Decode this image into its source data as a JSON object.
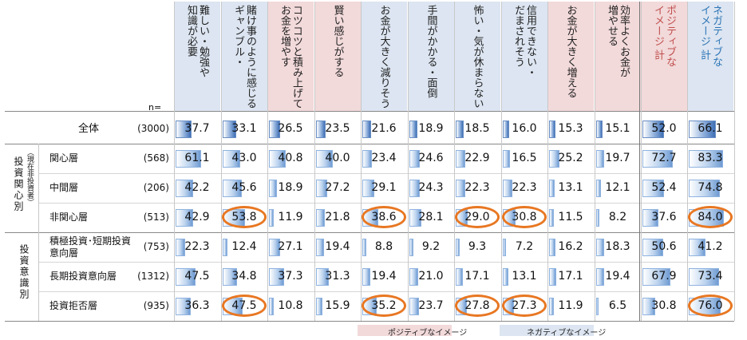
{
  "n_label": "n=",
  "columns": [
    {
      "label": "難しい・勉強や\n知識が必要",
      "group": "negative"
    },
    {
      "label": "賭け事のように感じる\nギャンブル・",
      "group": "negative"
    },
    {
      "label": "コツコツと積み上げて\nお金を増やす",
      "group": "positive"
    },
    {
      "label": "賢い感じがする",
      "group": "positive"
    },
    {
      "label": "お金が大きく減りそう",
      "group": "negative"
    },
    {
      "label": "手間がかかる・面倒",
      "group": "negative"
    },
    {
      "label": "怖い・気が休まらない",
      "group": "negative"
    },
    {
      "label": "信用できない・\nだまされそう",
      "group": "negative"
    },
    {
      "label": "お金が大きく増える",
      "group": "positive"
    },
    {
      "label": "効率よくお金が\n増やせる",
      "group": "positive"
    },
    {
      "label": "ポジティブな\nイメージ 計",
      "group": "positive",
      "summary": true
    },
    {
      "label": "ネガティブな\nイメージ 計",
      "group": "negative",
      "summary": true
    }
  ],
  "groups": [
    {
      "label": "投資関心別",
      "note": "（現在非投資者）"
    },
    {
      "label": "投資意識別",
      "note": ""
    }
  ],
  "rows": [
    {
      "label": "全体",
      "n": "(3000)",
      "values": [
        "37.7",
        "33.1",
        "26.5",
        "23.5",
        "21.6",
        "18.9",
        "18.5",
        "16.0",
        "15.3",
        "15.1",
        "52.0",
        "66.1"
      ]
    },
    {
      "label": "関心層",
      "n": "(568)",
      "values": [
        "61.1",
        "43.0",
        "40.8",
        "40.0",
        "23.4",
        "24.6",
        "22.9",
        "16.5",
        "25.2",
        "19.7",
        "72.7",
        "83.3"
      ]
    },
    {
      "label": "中間層",
      "n": "(206)",
      "values": [
        "42.2",
        "45.6",
        "18.9",
        "27.2",
        "29.1",
        "24.3",
        "22.3",
        "22.3",
        "13.1",
        "12.1",
        "52.4",
        "74.8"
      ]
    },
    {
      "label": "非関心層",
      "n": "(513)",
      "values": [
        "42.9",
        "53.8",
        "11.9",
        "21.8",
        "38.6",
        "28.1",
        "29.0",
        "30.8",
        "11.5",
        "8.2",
        "37.6",
        "84.0"
      ]
    },
    {
      "label": "積極投資･短期投資\n意向層",
      "n": "(753)",
      "values": [
        "22.3",
        "12.4",
        "27.1",
        "19.4",
        "8.8",
        "9.2",
        "9.3",
        "7.2",
        "16.2",
        "18.3",
        "50.6",
        "41.2"
      ]
    },
    {
      "label": "長期投資意向層",
      "n": "(1312)",
      "values": [
        "47.5",
        "34.8",
        "37.3",
        "31.3",
        "19.4",
        "21.0",
        "17.1",
        "13.1",
        "17.1",
        "19.4",
        "67.9",
        "73.4"
      ]
    },
    {
      "label": "投資拒否層",
      "n": "(935)",
      "values": [
        "36.3",
        "47.5",
        "10.8",
        "15.9",
        "35.2",
        "23.7",
        "27.8",
        "27.3",
        "11.9",
        "6.5",
        "30.8",
        "76.0"
      ]
    }
  ],
  "highlights": [
    {
      "row": 3,
      "col": 1
    },
    {
      "row": 3,
      "col": 4
    },
    {
      "row": 3,
      "col": 6
    },
    {
      "row": 3,
      "col": 7
    },
    {
      "row": 3,
      "col": 11
    },
    {
      "row": 6,
      "col": 1
    },
    {
      "row": 6,
      "col": 4
    },
    {
      "row": 6,
      "col": 6
    },
    {
      "row": 6,
      "col": 7
    },
    {
      "row": 6,
      "col": 11
    }
  ],
  "legend": {
    "positive": "ポジティブなイメージ",
    "negative": "ネガティブなイメージ"
  },
  "colors": {
    "positive_bg": "#f2d9da",
    "negative_bg": "#dce5f1",
    "highlight": "#e87722"
  },
  "chart_data": {
    "type": "table",
    "title": "",
    "categories": [
      "難しい・勉強や知識が必要",
      "ギャンブル・賭け事のように感じる",
      "コツコツと積み上げてお金を増やす",
      "賢い感じがする",
      "お金が大きく減りそう",
      "手間がかかる・面倒",
      "怖い・気が休まらない",
      "信用できない・だまされそう",
      "お金が大きく増える",
      "効率よくお金が増やせる",
      "ポジティブなイメージ 計",
      "ネガティブなイメージ 計"
    ],
    "series": [
      {
        "name": "全体",
        "values": [
          37.7,
          33.1,
          26.5,
          23.5,
          21.6,
          18.9,
          18.5,
          16.0,
          15.3,
          15.1,
          52.0,
          66.1
        ]
      },
      {
        "name": "関心層",
        "values": [
          61.1,
          43.0,
          40.8,
          40.0,
          23.4,
          24.6,
          22.9,
          16.5,
          25.2,
          19.7,
          72.7,
          83.3
        ]
      },
      {
        "name": "中間層",
        "values": [
          42.2,
          45.6,
          18.9,
          27.2,
          29.1,
          24.3,
          22.3,
          22.3,
          13.1,
          12.1,
          52.4,
          74.8
        ]
      },
      {
        "name": "非関心層",
        "values": [
          42.9,
          53.8,
          11.9,
          21.8,
          38.6,
          28.1,
          29.0,
          30.8,
          11.5,
          8.2,
          37.6,
          84.0
        ]
      },
      {
        "name": "積極投資･短期投資意向層",
        "values": [
          22.3,
          12.4,
          27.1,
          19.4,
          8.8,
          9.2,
          9.3,
          7.2,
          16.2,
          18.3,
          50.6,
          41.2
        ]
      },
      {
        "name": "長期投資意向層",
        "values": [
          47.5,
          34.8,
          37.3,
          31.3,
          19.4,
          21.0,
          17.1,
          13.1,
          17.1,
          19.4,
          67.9,
          73.4
        ]
      },
      {
        "name": "投資拒否層",
        "values": [
          36.3,
          47.5,
          10.8,
          15.9,
          35.2,
          23.7,
          27.8,
          27.3,
          11.9,
          6.5,
          30.8,
          76.0
        ]
      }
    ],
    "ylim": [
      0,
      100
    ]
  }
}
